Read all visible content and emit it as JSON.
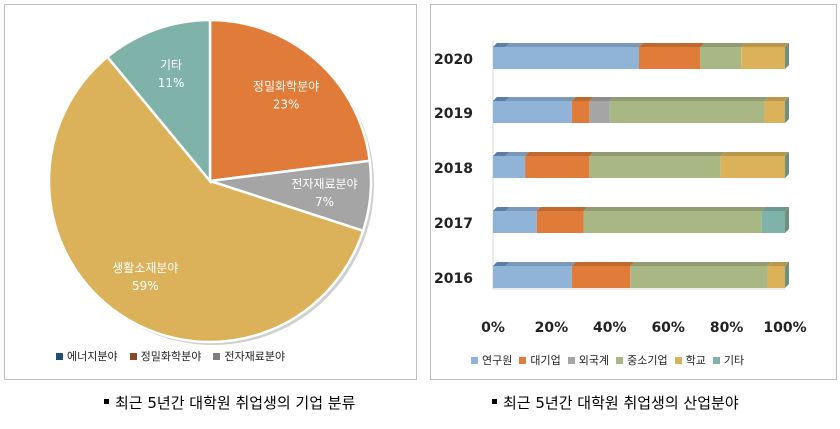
{
  "chart_data": [
    {
      "type": "pie",
      "slices": [
        {
          "name": "에너지분야",
          "value": 0,
          "label": "",
          "color": "#1f4e79"
        },
        {
          "name": "정밀화학분야",
          "value": 23,
          "label": "23%",
          "color": "#e07b39"
        },
        {
          "name": "전자재료분야",
          "value": 7,
          "label": "7%",
          "color": "#a5a5a5"
        },
        {
          "name": "생활소재분야",
          "value": 59,
          "label": "59%",
          "color": "#dbb25a"
        },
        {
          "name": "기타",
          "value": 11,
          "label": "11%",
          "color": "#7fb3a9"
        }
      ],
      "legend": [
        "에너지분야",
        "정밀화학분야",
        "전자재료분야"
      ],
      "legend_colors": [
        "#1f4e79",
        "#8a4a2a",
        "#7f7f7f"
      ],
      "legend_position": "bottom",
      "caption": "최근 5년간 대학원 취업생의 기업 분류"
    },
    {
      "type": "bar",
      "orientation": "horizontal",
      "stacked": "percent",
      "categories": [
        "2020",
        "2019",
        "2018",
        "2017",
        "2016"
      ],
      "series": [
        {
          "name": "연구원",
          "color": "#8fb4d8",
          "values": [
            50,
            27,
            11,
            15,
            27
          ]
        },
        {
          "name": "대기업",
          "color": "#e07b39",
          "values": [
            21,
            6,
            22,
            16,
            20
          ]
        },
        {
          "name": "외국계",
          "color": "#a5a5a5",
          "values": [
            0,
            7,
            0,
            0,
            0
          ]
        },
        {
          "name": "중소기업",
          "color": "#a9b784",
          "values": [
            14,
            53,
            45,
            61,
            47
          ]
        },
        {
          "name": "학교",
          "color": "#dbb25a",
          "values": [
            15,
            7,
            22,
            0,
            6
          ]
        },
        {
          "name": "기타",
          "color": "#7fb3a9",
          "values": [
            0,
            0,
            0,
            8,
            0
          ]
        }
      ],
      "xticks": [
        "0%",
        "20%",
        "40%",
        "60%",
        "80%",
        "100%"
      ],
      "xlim": [
        0,
        100
      ],
      "grid": false,
      "legend_position": "bottom",
      "caption": "최근 5년간 대학원 취업생의 산업분야"
    }
  ]
}
